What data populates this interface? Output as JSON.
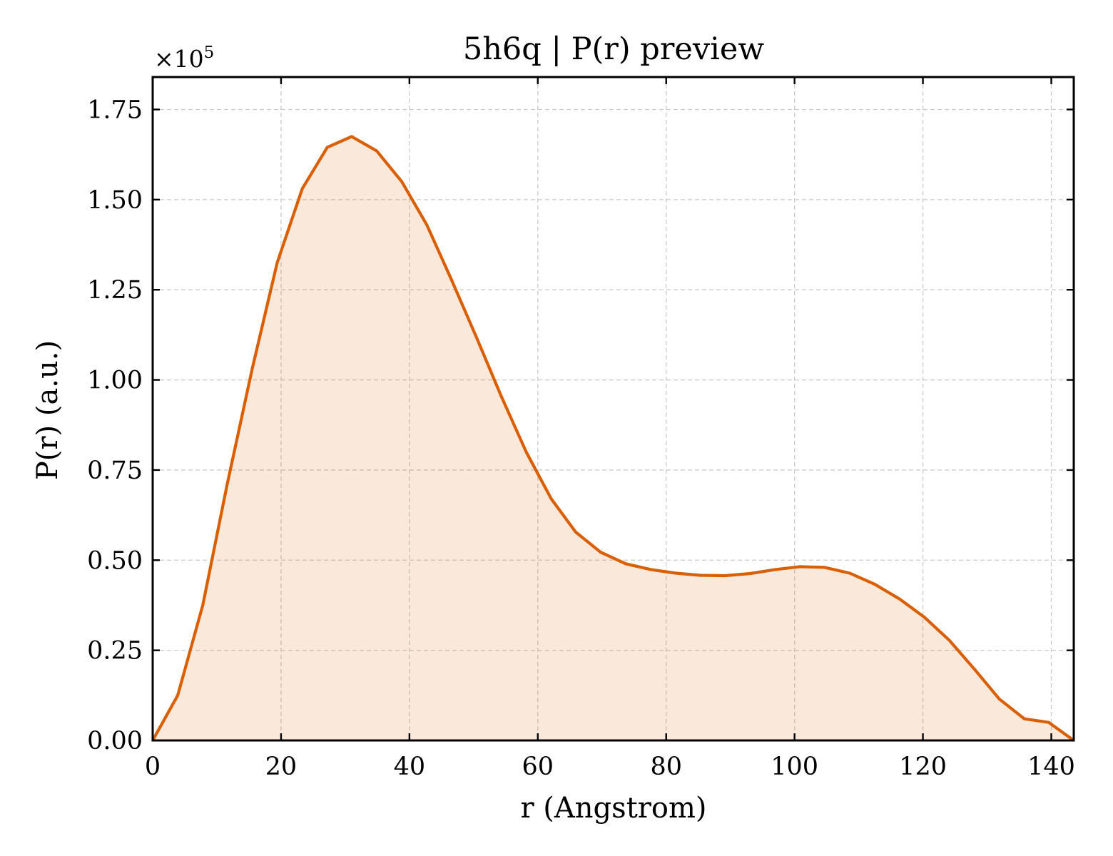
{
  "chart_data": {
    "type": "area",
    "title": "5h6q | P(r) preview",
    "xlabel": "r (Angstrom)",
    "ylabel": "P(r) (a.u.)",
    "y_multiplier_text": "×10",
    "y_multiplier_exponent": "5",
    "xlim": [
      0,
      143.5
    ],
    "ylim": [
      0,
      1.84
    ],
    "x_ticks": [
      0,
      20,
      40,
      60,
      80,
      100,
      120,
      140
    ],
    "x_tick_labels": [
      "0",
      "20",
      "40",
      "60",
      "80",
      "100",
      "120",
      "140"
    ],
    "y_ticks": [
      0,
      0.25,
      0.5,
      0.75,
      1.0,
      1.25,
      1.5,
      1.75
    ],
    "y_tick_labels": [
      "0.00",
      "0.25",
      "0.50",
      "0.75",
      "1.00",
      "1.25",
      "1.50",
      "1.75"
    ],
    "grid": true,
    "series": [
      {
        "color": "#d95f02",
        "fill_color": "#d95f02",
        "fill_opacity": 0.14,
        "x": [
          0,
          3.9,
          7.8,
          11.6,
          15.5,
          19.4,
          23.3,
          27.2,
          31.0,
          34.9,
          38.8,
          42.7,
          46.5,
          50.4,
          54.3,
          58.2,
          62.1,
          65.9,
          69.8,
          73.7,
          77.6,
          81.5,
          85.3,
          89.2,
          93.1,
          97.0,
          100.8,
          104.7,
          108.6,
          112.5,
          116.4,
          120.2,
          124.1,
          128.0,
          131.9,
          135.8,
          139.6,
          143.5
        ],
        "y": [
          0.0,
          0.125,
          0.375,
          0.71,
          1.03,
          1.325,
          1.53,
          1.645,
          1.675,
          1.635,
          1.55,
          1.43,
          1.28,
          1.12,
          0.955,
          0.8,
          0.67,
          0.578,
          0.522,
          0.49,
          0.474,
          0.464,
          0.458,
          0.457,
          0.463,
          0.474,
          0.482,
          0.48,
          0.464,
          0.433,
          0.392,
          0.342,
          0.278,
          0.198,
          0.115,
          0.06,
          0.05,
          0.0
        ]
      }
    ]
  }
}
